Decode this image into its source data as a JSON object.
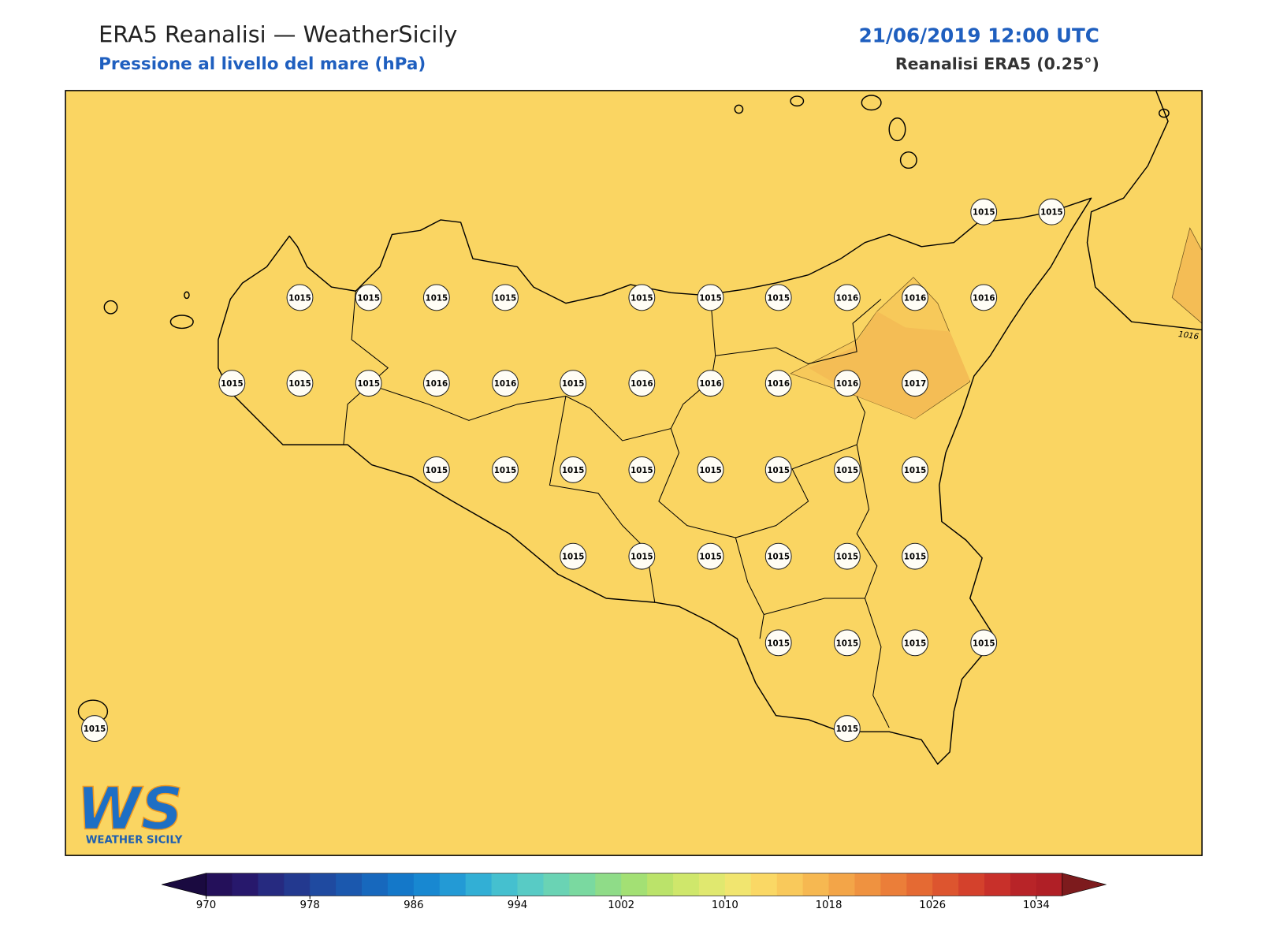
{
  "header": {
    "title": "ERA5 Reanalisi — WeatherSicily",
    "subtitle": "Pressione al livello del mare (hPa)",
    "datetime": "21/06/2019 12:00 UTC",
    "source": "Reanalisi ERA5 (0.25°)"
  },
  "map": {
    "stations": [
      1015,
      1015,
      1015,
      1015,
      1015,
      1015,
      1015,
      1015,
      1015,
      1016,
      1016,
      1016,
      1015,
      1015,
      1015,
      1016,
      1016,
      1015,
      1016,
      1016,
      1016,
      1016,
      1017,
      1015,
      1015,
      1015,
      1015,
      1015,
      1015,
      1015,
      1015,
      1015,
      1015,
      1015,
      1015,
      1015,
      1015,
      1015,
      1015,
      1015,
      1015,
      1015,
      1015
    ],
    "contour_label": "1016"
  },
  "logo": {
    "mark": "WS",
    "text": "WEATHER SICILY"
  },
  "colorbar": {
    "ticks": [
      970,
      978,
      986,
      994,
      1002,
      1010,
      1018,
      1026,
      1034
    ],
    "colors": [
      "#24105a",
      "#27186c",
      "#262a80",
      "#23398f",
      "#1f4aa0",
      "#1b58ae",
      "#1768bd",
      "#1478c9",
      "#1888d1",
      "#239ad5",
      "#32afd5",
      "#45c0cf",
      "#58cbc5",
      "#6ad3b4",
      "#7ad9a0",
      "#8fdc88",
      "#a3e074",
      "#bbe36a",
      "#cfe76b",
      "#e0e86f",
      "#f1e56f",
      "#fad865",
      "#f9c95b",
      "#f6b851",
      "#f3a548",
      "#ef9240",
      "#eb7e39",
      "#e56a33",
      "#dd552f",
      "#d4412c",
      "#c8302a",
      "#b82428",
      "#b01f26"
    ],
    "under_color": "#1a0a40",
    "over_color": "#7d1b1d"
  }
}
